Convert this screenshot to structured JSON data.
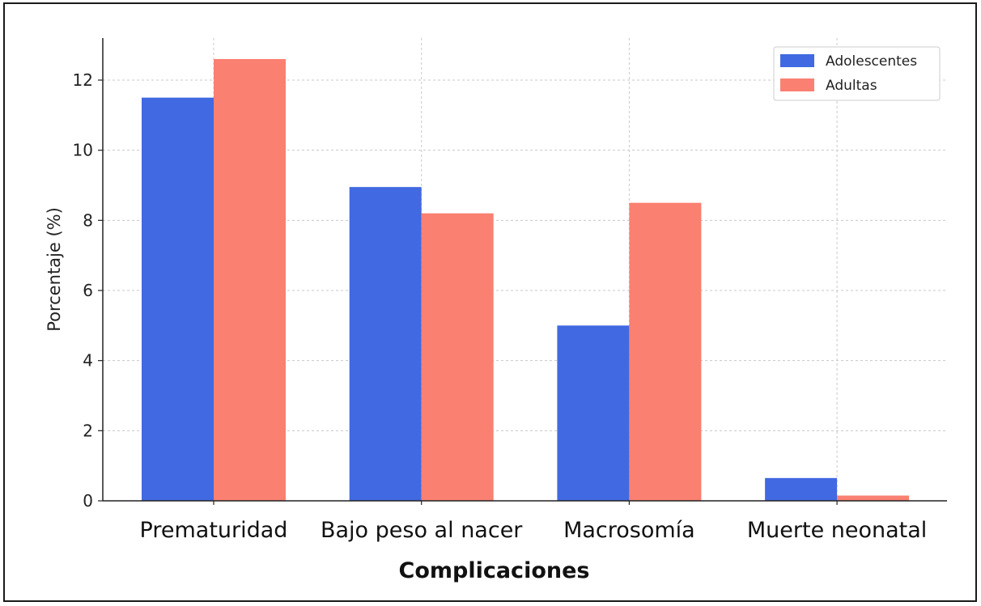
{
  "chart_data": {
    "type": "bar",
    "title": "",
    "xlabel": "Complicaciones",
    "ylabel": "Porcentaje (%)",
    "categories": [
      "Prematuridad",
      "Bajo peso al nacer",
      "Macrosomía",
      "Muerte neonatal"
    ],
    "series": [
      {
        "name": "Adolescentes",
        "values": [
          11.5,
          8.95,
          5.0,
          0.65
        ],
        "color": "#4169e1"
      },
      {
        "name": "Adultas",
        "values": [
          12.6,
          8.2,
          8.5,
          0.15
        ],
        "color": "#fa8072"
      }
    ],
    "ylim": [
      0,
      13.2
    ],
    "yticks": [
      0,
      2,
      4,
      6,
      8,
      10,
      12
    ],
    "grid": true,
    "legend_position": "top-right"
  }
}
